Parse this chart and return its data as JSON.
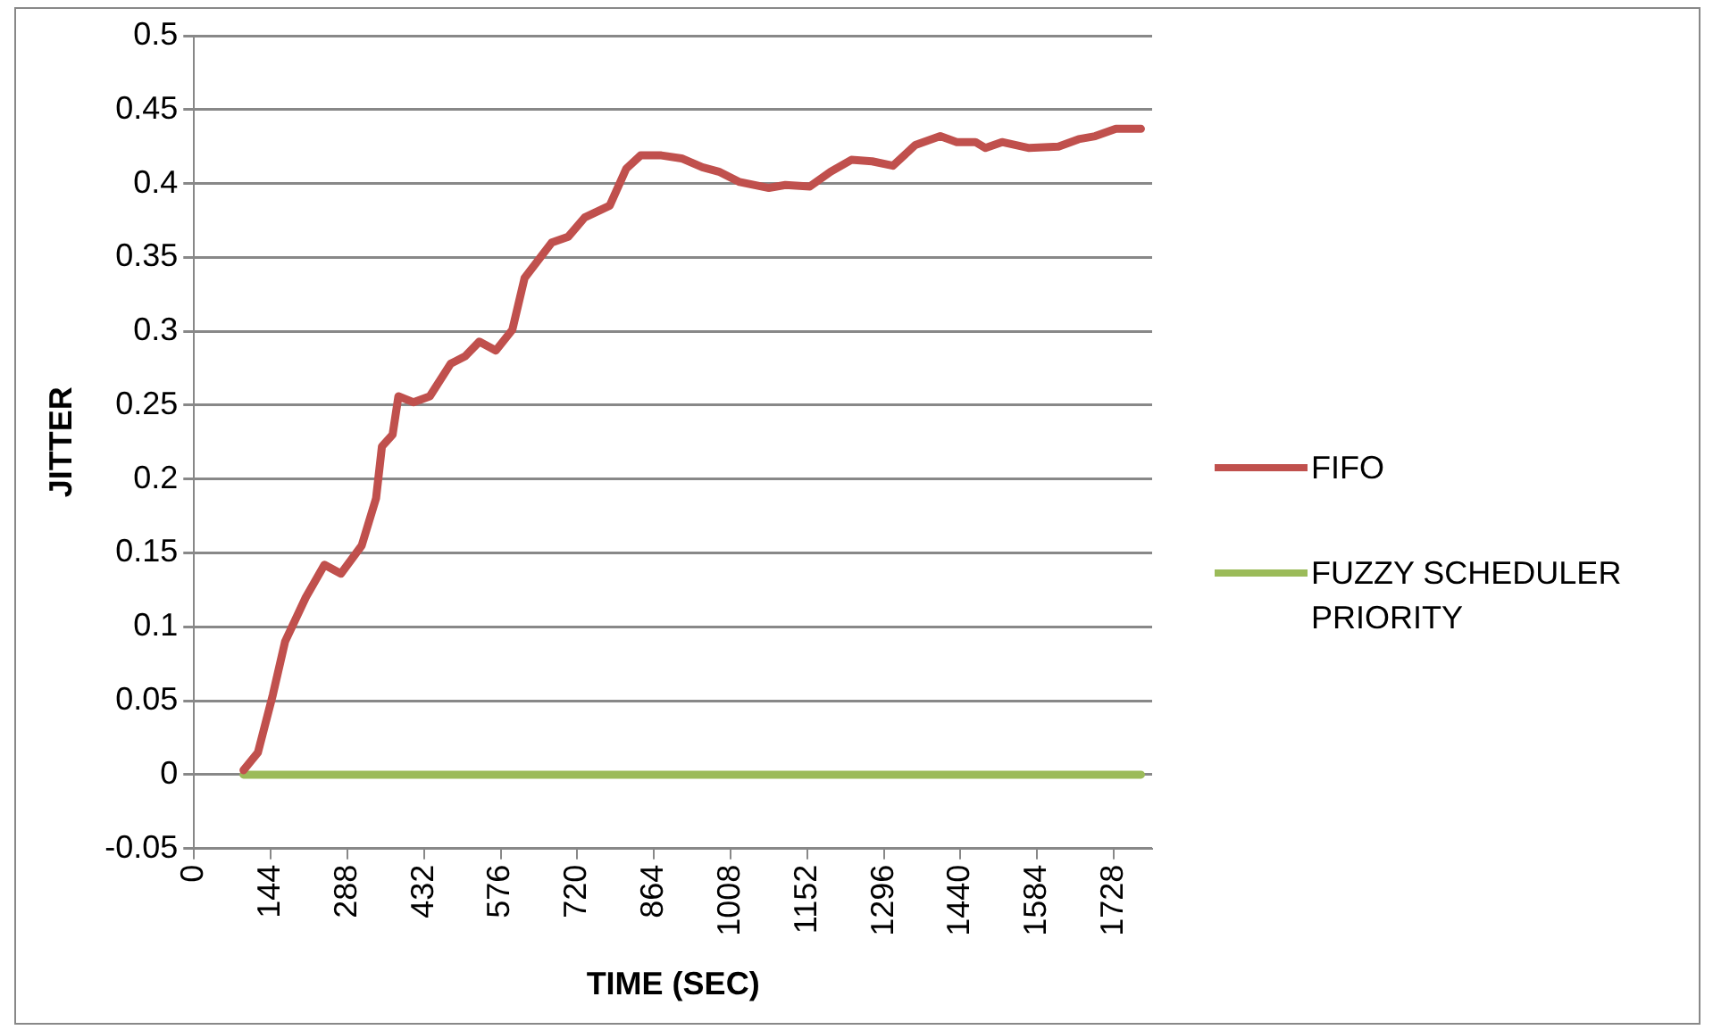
{
  "chart_data": {
    "type": "line",
    "xlabel": "TIME (SEC)",
    "ylabel": "JITTER",
    "xlim": [
      0,
      1800
    ],
    "xticks": [
      0,
      144,
      288,
      432,
      576,
      720,
      864,
      1008,
      1152,
      1296,
      1440,
      1584,
      1728
    ],
    "ylim": [
      -0.05,
      0.5
    ],
    "yticks": [
      -0.05,
      0,
      0.05,
      0.1,
      0.15,
      0.2,
      0.25,
      0.3,
      0.35,
      0.4,
      0.45,
      0.5
    ],
    "grid": "y",
    "legend": "right",
    "marker": "none",
    "line_style": "solid",
    "series": [
      {
        "name": "FIFO",
        "color": "#c0504d",
        "x": [
          93,
          120,
          148,
          171,
          210,
          245,
          276,
          315,
          342,
          353,
          373,
          384,
          412,
          443,
          482,
          509,
          536,
          567,
          598,
          621,
          672,
          703,
          734,
          781,
          812,
          839,
          878,
          916,
          955,
          986,
          1025,
          1080,
          1111,
          1157,
          1196,
          1235,
          1274,
          1313,
          1355,
          1402,
          1433,
          1468,
          1487,
          1518,
          1569,
          1624,
          1662,
          1693,
          1732,
          1779
        ],
        "values": [
          0.003,
          0.015,
          0.054,
          0.09,
          0.12,
          0.142,
          0.136,
          0.155,
          0.187,
          0.222,
          0.23,
          0.256,
          0.252,
          0.256,
          0.278,
          0.283,
          0.293,
          0.287,
          0.301,
          0.336,
          0.36,
          0.364,
          0.377,
          0.385,
          0.41,
          0.419,
          0.419,
          0.417,
          0.411,
          0.408,
          0.401,
          0.397,
          0.399,
          0.398,
          0.408,
          0.416,
          0.415,
          0.412,
          0.426,
          0.432,
          0.428,
          0.428,
          0.424,
          0.428,
          0.424,
          0.425,
          0.43,
          0.432,
          0.437,
          0.437
        ]
      },
      {
        "name": "FUZZY SCHEDULER PRIORITY",
        "color": "#9bbb59",
        "x": [
          93,
          1779
        ],
        "values": [
          0,
          0
        ]
      }
    ]
  }
}
